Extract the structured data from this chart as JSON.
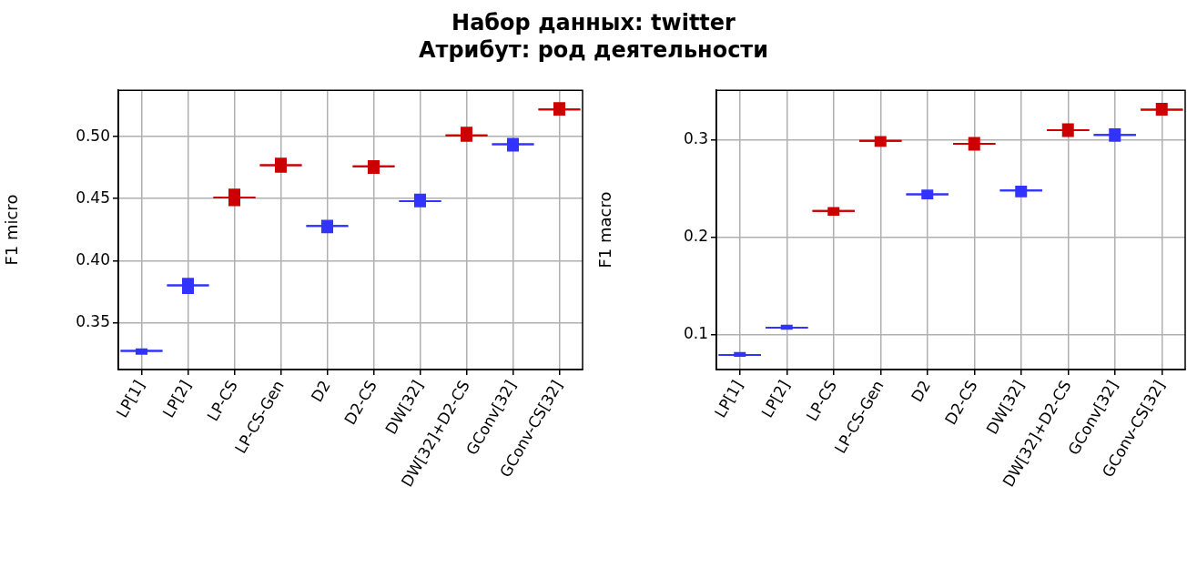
{
  "chart_data": [
    {
      "type": "box",
      "title": "Набор данных: twitter",
      "subtitle": "Атрибут: род деятельности",
      "ylabel": "F1 micro",
      "grid": true,
      "categories": [
        "LP[1]",
        "LP[2]",
        "LP-CS",
        "LP-CS-Gen",
        "D2",
        "D2-CS",
        "DW[32]",
        "DW[32]+D2-CS",
        "GConv[32]",
        "GConv-CS[32]"
      ],
      "ylim": [
        0.312,
        0.5375
      ],
      "yticks": [
        {
          "value": 0.35,
          "label": "0.35"
        },
        {
          "value": 0.4,
          "label": "0.40"
        },
        {
          "value": 0.45,
          "label": "0.45"
        },
        {
          "value": 0.5,
          "label": "0.50"
        }
      ],
      "colors": [
        "#3333ff",
        "#3333ff",
        "#cc0000",
        "#cc0000",
        "#3333ff",
        "#cc0000",
        "#3333ff",
        "#cc0000",
        "#3333ff",
        "#cc0000"
      ],
      "boxes": [
        {
          "low": 0.324,
          "q1": 0.327,
          "median": 0.327,
          "q3": 0.327,
          "high": 0.329
        },
        {
          "low": 0.373,
          "q1": 0.38,
          "median": 0.38,
          "q3": 0.38,
          "high": 0.386
        },
        {
          "low": 0.444,
          "q1": 0.451,
          "median": 0.451,
          "q3": 0.451,
          "high": 0.458
        },
        {
          "low": 0.471,
          "q1": 0.477,
          "median": 0.477,
          "q3": 0.477,
          "high": 0.483
        },
        {
          "low": 0.422,
          "q1": 0.428,
          "median": 0.428,
          "q3": 0.428,
          "high": 0.433
        },
        {
          "low": 0.47,
          "q1": 0.476,
          "median": 0.476,
          "q3": 0.476,
          "high": 0.481
        },
        {
          "low": 0.443,
          "q1": 0.448,
          "median": 0.448,
          "q3": 0.448,
          "high": 0.454
        },
        {
          "low": 0.496,
          "q1": 0.501,
          "median": 0.501,
          "q3": 0.501,
          "high": 0.508
        },
        {
          "low": 0.488,
          "q1": 0.494,
          "median": 0.494,
          "q3": 0.494,
          "high": 0.499
        },
        {
          "low": 0.517,
          "q1": 0.522,
          "median": 0.522,
          "q3": 0.522,
          "high": 0.528
        }
      ]
    },
    {
      "type": "box",
      "ylabel": "F1 macro",
      "grid": true,
      "categories": [
        "LP[1]",
        "LP[2]",
        "LP-CS",
        "LP-CS-Gen",
        "D2",
        "D2-CS",
        "DW[32]",
        "DW[32]+D2-CS",
        "GConv[32]",
        "GConv-CS[32]"
      ],
      "ylim": [
        0.064,
        0.351
      ],
      "yticks": [
        0.1,
        0.2,
        0.3
      ],
      "colors": [
        "#3333ff",
        "#3333ff",
        "#cc0000",
        "#cc0000",
        "#3333ff",
        "#cc0000",
        "#3333ff",
        "#cc0000",
        "#3333ff",
        "#cc0000"
      ],
      "boxes": [
        {
          "low": 0.077,
          "q1": 0.079,
          "median": 0.079,
          "q3": 0.079,
          "high": 0.082
        },
        {
          "low": 0.105,
          "q1": 0.107,
          "median": 0.107,
          "q3": 0.107,
          "high": 0.11
        },
        {
          "low": 0.222,
          "q1": 0.227,
          "median": 0.227,
          "q3": 0.227,
          "high": 0.231
        },
        {
          "low": 0.293,
          "q1": 0.299,
          "median": 0.299,
          "q3": 0.299,
          "high": 0.304
        },
        {
          "low": 0.239,
          "q1": 0.244,
          "median": 0.244,
          "q3": 0.244,
          "high": 0.249
        },
        {
          "low": 0.289,
          "q1": 0.296,
          "median": 0.296,
          "q3": 0.296,
          "high": 0.303
        },
        {
          "low": 0.241,
          "q1": 0.248,
          "median": 0.248,
          "q3": 0.248,
          "high": 0.253
        },
        {
          "low": 0.303,
          "q1": 0.31,
          "median": 0.31,
          "q3": 0.31,
          "high": 0.317
        },
        {
          "low": 0.298,
          "q1": 0.305,
          "median": 0.305,
          "q3": 0.305,
          "high": 0.312
        },
        {
          "low": 0.325,
          "q1": 0.331,
          "median": 0.331,
          "q3": 0.331,
          "high": 0.338
        }
      ]
    }
  ]
}
